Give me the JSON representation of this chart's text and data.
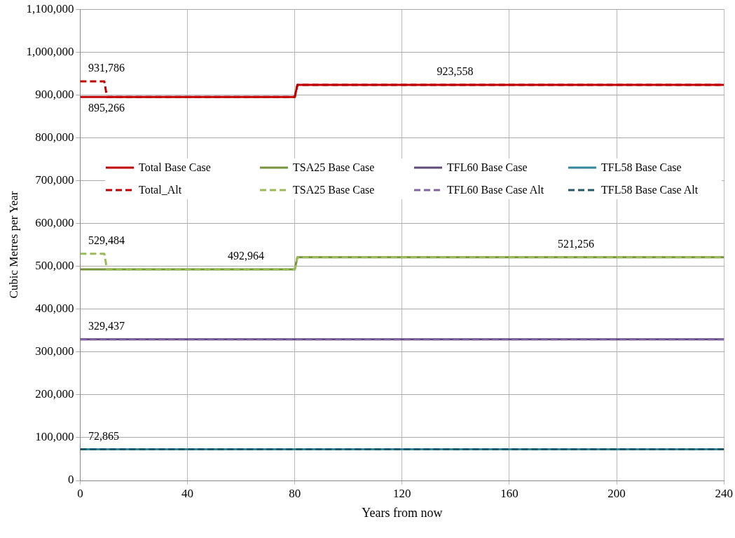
{
  "chart_data": {
    "type": "line",
    "xlabel": "Years from now",
    "ylabel": "Cubic Metres per Year",
    "xlim": [
      0,
      240
    ],
    "xticks": [
      0,
      40,
      80,
      120,
      160,
      200,
      240
    ],
    "ylim": [
      0,
      1100000
    ],
    "yticks": [
      0,
      {
        "value": 100000,
        "label": "100,000"
      },
      {
        "value": 200000,
        "label": "200,000"
      },
      {
        "value": 300000,
        "label": "300,000"
      },
      {
        "value": 400000,
        "label": "400,000"
      },
      {
        "value": 500000,
        "label": "500,000"
      },
      {
        "value": 600000,
        "label": "600,000"
      },
      {
        "value": 700000,
        "label": "700,000"
      },
      {
        "value": 800000,
        "label": "800,000"
      },
      {
        "value": 900000,
        "label": "900,000"
      },
      {
        "value": 1000000,
        "label": "1,000,000"
      },
      {
        "value": 1100000,
        "label": "1,100,000"
      }
    ],
    "grid": true,
    "legend": "center",
    "marker": "none",
    "series": [
      {
        "name": "Total Base Case",
        "color": "#c00000",
        "line_style": "solid",
        "x": [
          0,
          80,
          81,
          240
        ],
        "values": [
          895266,
          895266,
          923558,
          923558
        ]
      },
      {
        "name": "TSA25 Base Case",
        "color": "#77933c",
        "line_style": "solid",
        "x": [
          0,
          80,
          81,
          240
        ],
        "values": [
          492964,
          492964,
          521256,
          521256
        ]
      },
      {
        "name": "TFL60 Base Case",
        "color": "#604a7b",
        "line_style": "solid",
        "x": [
          0,
          240
        ],
        "values": [
          329437,
          329437
        ]
      },
      {
        "name": "TFL58 Base Case",
        "color": "#31859c",
        "line_style": "solid",
        "x": [
          0,
          240
        ],
        "values": [
          72865,
          72865
        ]
      },
      {
        "name": "Total_Alt",
        "color": "#c00000",
        "line_style": "dashed",
        "x": [
          0,
          9,
          10,
          80,
          81,
          240
        ],
        "values": [
          931786,
          931786,
          895266,
          895266,
          923558,
          923558
        ]
      },
      {
        "name": "TSA25 Base Case",
        "color": "#9bbb59",
        "line_style": "dashed",
        "x": [
          0,
          9,
          10,
          80,
          81,
          240
        ],
        "values": [
          529484,
          529484,
          492964,
          492964,
          521256,
          521256
        ]
      },
      {
        "name": "TFL60 Base Case Alt",
        "color": "#8064a2",
        "line_style": "dashed",
        "x": [
          0,
          240
        ],
        "values": [
          329437,
          329437
        ]
      },
      {
        "name": "TFL58 Base Case Alt",
        "color": "#215968",
        "line_style": "dashed",
        "x": [
          0,
          240
        ],
        "values": [
          72865,
          72865
        ]
      }
    ],
    "annotations": [
      {
        "text": "931,786",
        "x": 3,
        "y": 931786
      },
      {
        "text": "895,266",
        "x": 3,
        "y": 895266
      },
      {
        "text": "923,558",
        "x": 133,
        "y": 923558
      },
      {
        "text": "529,484",
        "x": 3,
        "y": 529484
      },
      {
        "text": "492,964",
        "x": 55,
        "y": 492964
      },
      {
        "text": "521,256",
        "x": 178,
        "y": 521256
      },
      {
        "text": "329,437",
        "x": 3,
        "y": 329437
      },
      {
        "text": "72,865",
        "x": 3,
        "y": 72865
      }
    ]
  }
}
